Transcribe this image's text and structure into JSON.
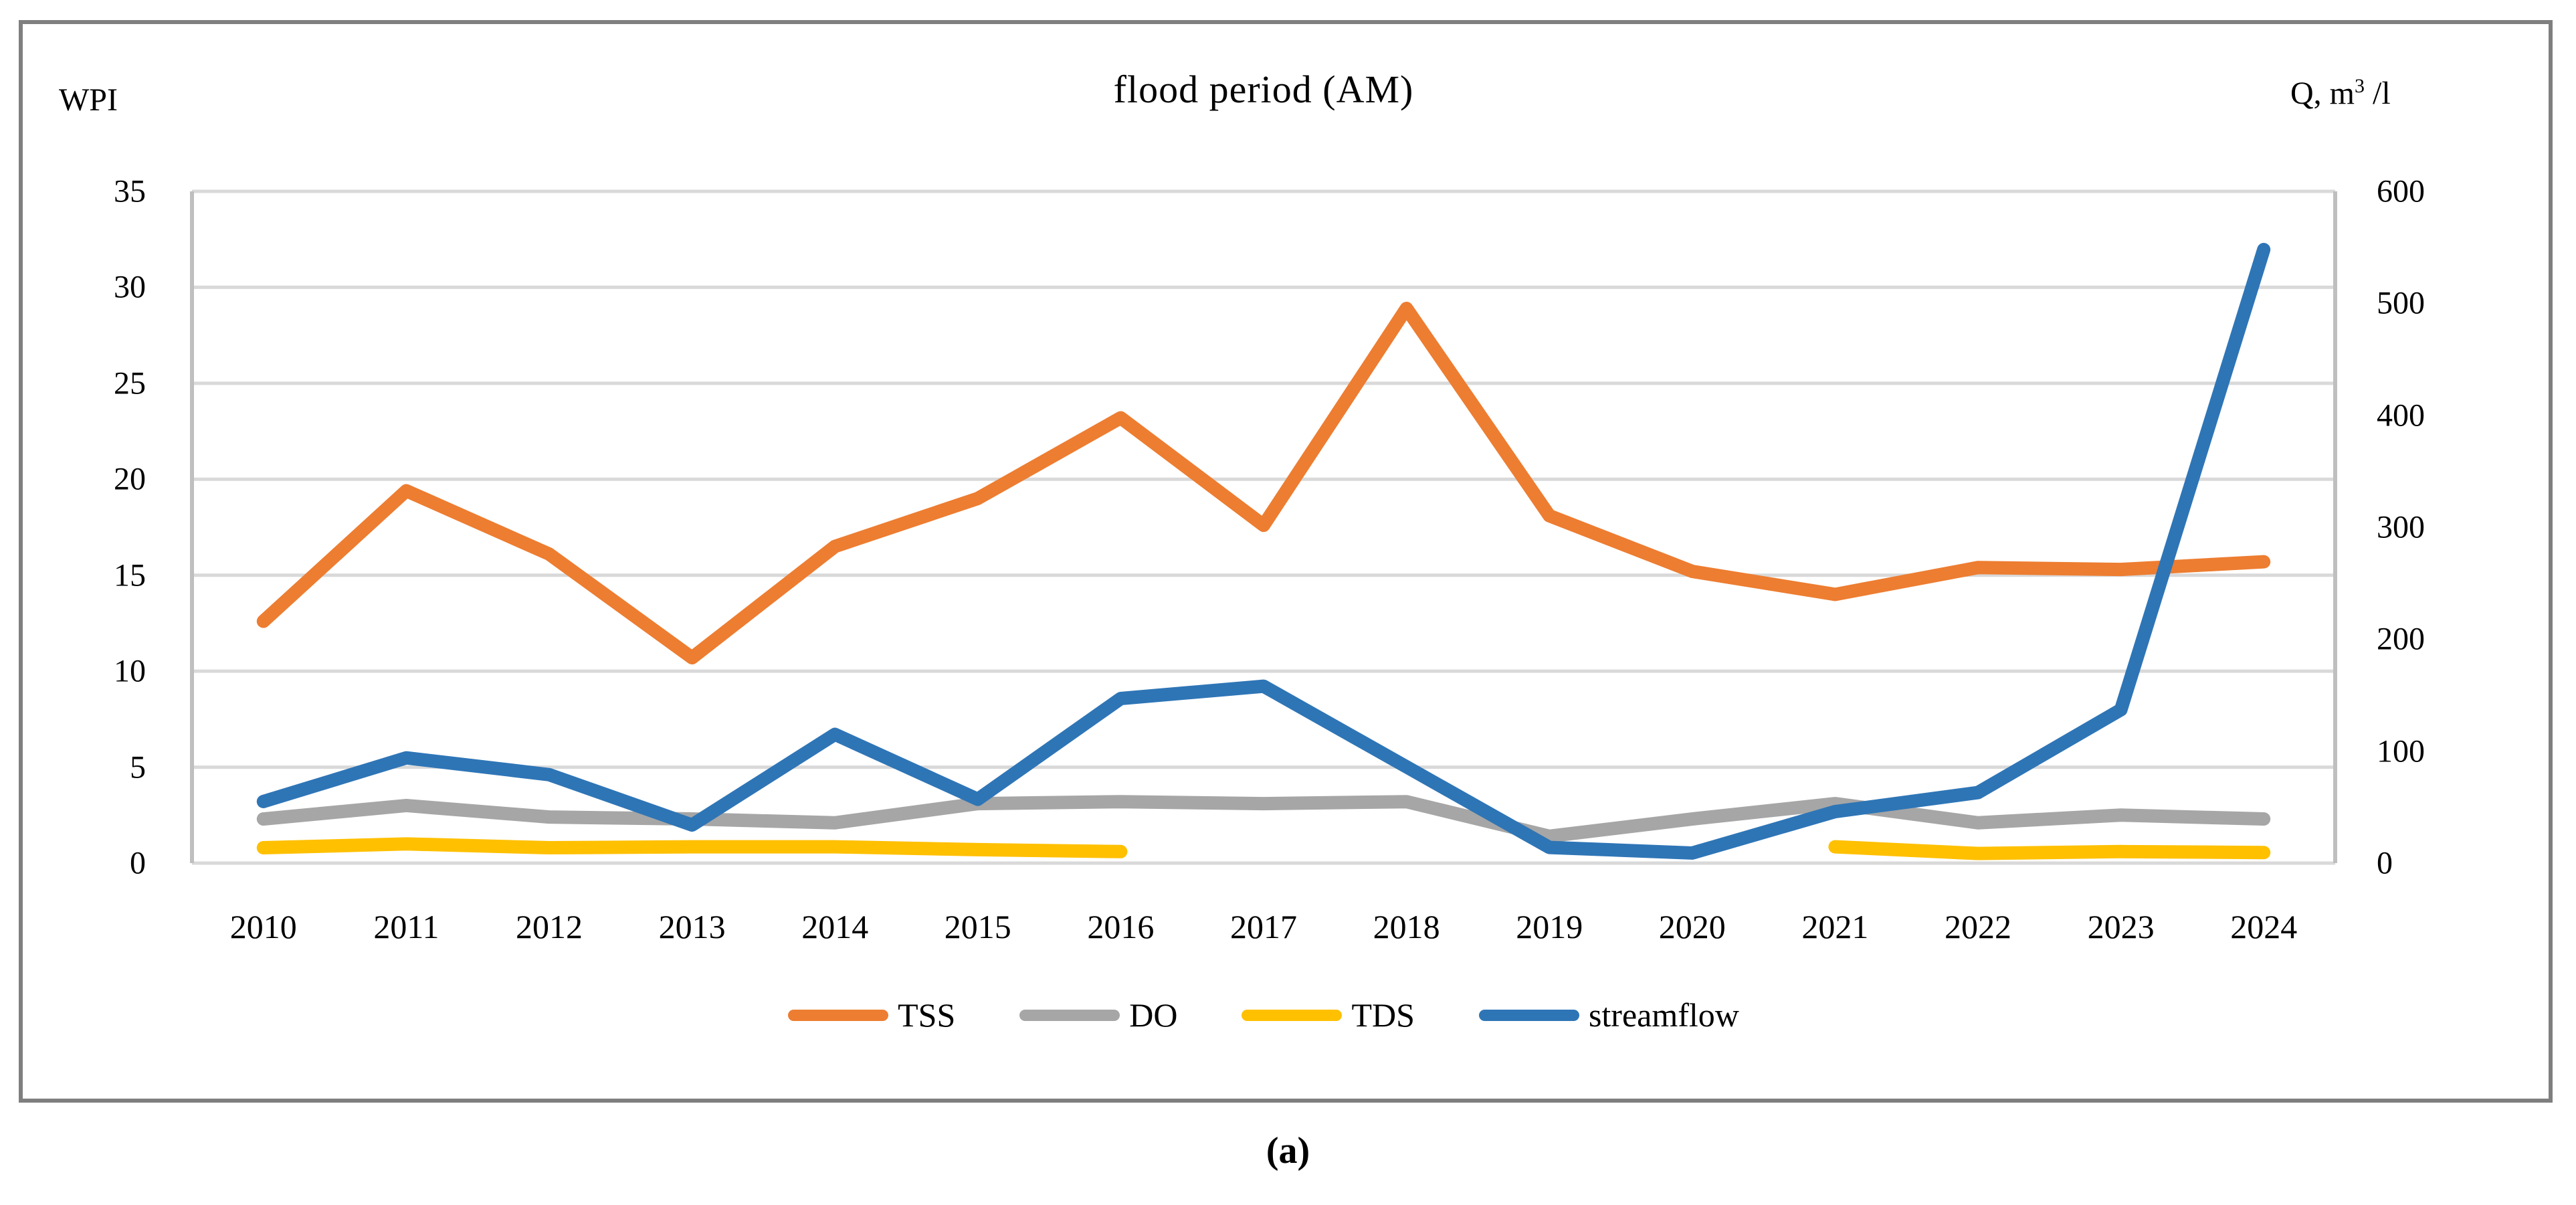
{
  "ui": {
    "caption": "(a)"
  },
  "chart_data": {
    "type": "line",
    "title": "flood period (AM)",
    "categories": [
      "2010",
      "2011",
      "2012",
      "2013",
      "2014",
      "2015",
      "2016",
      "2017",
      "2018",
      "2019",
      "2020",
      "2021",
      "2022",
      "2023",
      "2024"
    ],
    "left_axis": {
      "label": "WPI",
      "min": 0,
      "max": 35,
      "major": 5,
      "ticks": [
        "35",
        "30",
        "25",
        "20",
        "15",
        "10",
        "5",
        "0"
      ]
    },
    "right_axis": {
      "label": "Q, m³ /l",
      "min": 0,
      "max": 600,
      "major": 100,
      "ticks": [
        "600",
        "500",
        "400",
        "300",
        "200",
        "100",
        "0"
      ]
    },
    "grid": "horizontal",
    "legend_position": "bottom",
    "series": [
      {
        "name": "TSS",
        "axis": "left",
        "color": "#ED7D31",
        "values": [
          12.6,
          19.4,
          16.1,
          10.7,
          16.5,
          19.0,
          23.2,
          17.6,
          28.9,
          18.1,
          15.2,
          14.0,
          15.4,
          15.3,
          15.7
        ]
      },
      {
        "name": "DO",
        "axis": "left",
        "color": "#A6A6A6",
        "values": [
          2.3,
          3.0,
          2.4,
          2.3,
          2.1,
          3.1,
          3.2,
          3.1,
          3.2,
          1.4,
          2.3,
          3.1,
          2.1,
          2.5,
          2.3
        ]
      },
      {
        "name": "TDS",
        "axis": "left",
        "color": "#FFC000",
        "values": [
          0.8,
          1.0,
          0.8,
          0.85,
          0.85,
          0.7,
          0.6,
          null,
          null,
          null,
          null,
          0.85,
          0.5,
          0.6,
          0.55
        ]
      },
      {
        "name": "streamflow",
        "axis": "right",
        "color": "#2E75B6",
        "values": [
          55,
          94,
          79,
          34,
          115,
          57,
          147,
          158,
          86,
          14,
          9,
          46,
          63,
          137,
          548
        ]
      }
    ]
  }
}
